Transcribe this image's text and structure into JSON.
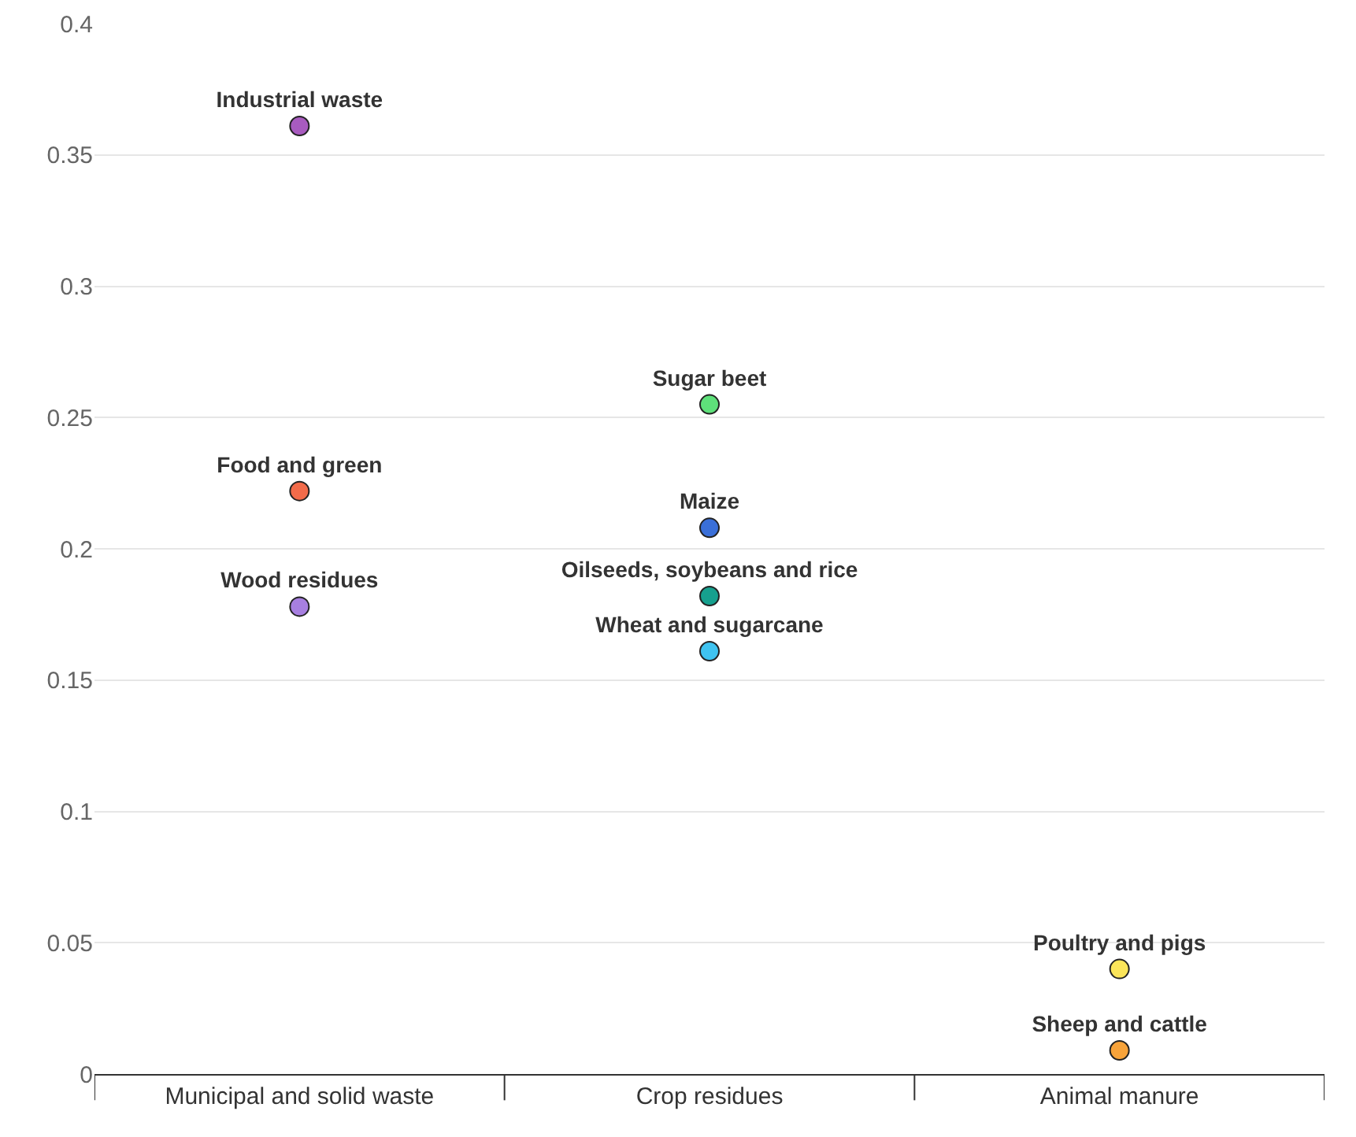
{
  "chart_data": {
    "type": "scatter",
    "categories": [
      "Municipal and solid waste",
      "Crop residues",
      "Animal manure"
    ],
    "ylim": [
      0,
      0.4
    ],
    "yticks": [
      0,
      0.05,
      0.1,
      0.15,
      0.2,
      0.25,
      0.3,
      0.35,
      0.4
    ],
    "grid": "y",
    "legend": false,
    "marker": "circle",
    "series": [
      {
        "name": "Industrial waste",
        "color": "#a85bbf",
        "x": [
          "Municipal and solid waste"
        ],
        "values": [
          0.361
        ]
      },
      {
        "name": "Food and green",
        "color": "#f26b4a",
        "x": [
          "Municipal and solid waste"
        ],
        "values": [
          0.222
        ]
      },
      {
        "name": "Wood residues",
        "color": "#a77fe0",
        "x": [
          "Municipal and solid waste"
        ],
        "values": [
          0.178
        ]
      },
      {
        "name": "Sugar beet",
        "color": "#5ee07a",
        "x": [
          "Crop residues"
        ],
        "values": [
          0.255
        ]
      },
      {
        "name": "Maize",
        "color": "#3a6fd8",
        "x": [
          "Crop residues"
        ],
        "values": [
          0.208
        ]
      },
      {
        "name": "Oilseeds, soybeans and rice",
        "color": "#16a08e",
        "x": [
          "Crop residues"
        ],
        "values": [
          0.182
        ]
      },
      {
        "name": "Wheat and sugarcane",
        "color": "#3fc3f0",
        "x": [
          "Crop residues"
        ],
        "values": [
          0.161
        ]
      },
      {
        "name": "Poultry and pigs",
        "color": "#fbe55a",
        "x": [
          "Animal manure"
        ],
        "values": [
          0.04
        ]
      },
      {
        "name": "Sheep and cattle",
        "color": "#f7a33a",
        "x": [
          "Animal manure"
        ],
        "values": [
          0.009
        ]
      }
    ]
  }
}
